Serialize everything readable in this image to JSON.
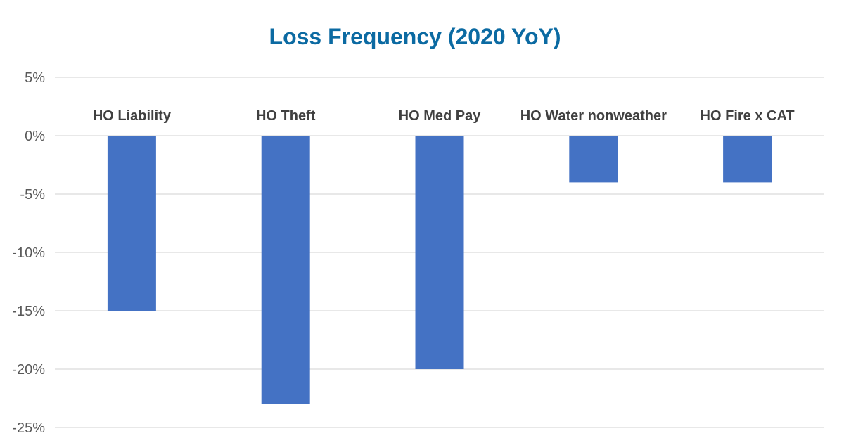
{
  "chart_data": {
    "type": "bar",
    "title": "Loss Frequency (2020 YoY)",
    "categories": [
      "HO Liability",
      "HO Theft",
      "HO Med Pay",
      "HO Water nonweather",
      "HO Fire x CAT"
    ],
    "series": [
      {
        "values": [
          -15,
          -23,
          -20,
          -4,
          -4
        ]
      }
    ],
    "y_ticks": [
      5,
      0,
      -5,
      -10,
      -15,
      -20,
      -25
    ],
    "y_tick_labels": [
      "5%",
      "0%",
      "-5%",
      "-10%",
      "-15%",
      "-20%",
      "-25%"
    ],
    "ylim": [
      -25,
      5
    ],
    "xlabel": "",
    "ylabel": "",
    "grid": true,
    "legend": "none",
    "colors": {
      "title": "#0b6aa2",
      "bar": "#4472c4"
    }
  }
}
